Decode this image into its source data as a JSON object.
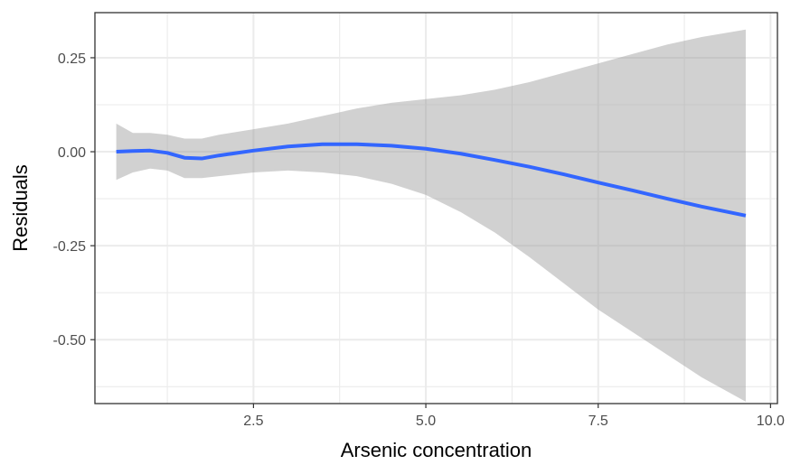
{
  "chart_data": {
    "type": "line",
    "title": "",
    "xlabel": "Arsenic concentration",
    "ylabel": "Residuals",
    "xlim": [
      0.2,
      10.1
    ],
    "ylim": [
      -0.67,
      0.37
    ],
    "grid": true,
    "legend": "none",
    "x_ticks": [
      2.5,
      5.0,
      7.5,
      10.0
    ],
    "x_tick_labels": [
      "2.5",
      "5.0",
      "7.5",
      "10.0"
    ],
    "y_ticks": [
      0.25,
      0.0,
      -0.25,
      -0.5
    ],
    "y_tick_labels": [
      "0.25",
      "0.00",
      "-0.25",
      "-0.50"
    ],
    "colors": {
      "line": "#3366FF",
      "band": "#999999",
      "grid": "#ebebeb",
      "panel_border": "#333333"
    },
    "series": [
      {
        "kind": "smooth-fit",
        "x": [
          0.51,
          0.75,
          1.0,
          1.25,
          1.5,
          1.75,
          2.0,
          2.5,
          3.0,
          3.5,
          4.0,
          4.5,
          5.0,
          5.5,
          6.0,
          6.5,
          7.0,
          7.5,
          8.0,
          8.5,
          9.0,
          9.64
        ],
        "y": [
          0.0,
          0.002,
          0.003,
          -0.003,
          -0.016,
          -0.018,
          -0.01,
          0.003,
          0.014,
          0.02,
          0.02,
          0.016,
          0.008,
          -0.005,
          -0.022,
          -0.04,
          -0.06,
          -0.082,
          -0.103,
          -0.125,
          -0.146,
          -0.17
        ],
        "lower": [
          -0.075,
          -0.055,
          -0.045,
          -0.05,
          -0.07,
          -0.07,
          -0.065,
          -0.055,
          -0.05,
          -0.055,
          -0.065,
          -0.085,
          -0.115,
          -0.16,
          -0.215,
          -0.28,
          -0.35,
          -0.42,
          -0.48,
          -0.54,
          -0.6,
          -0.665
        ],
        "upper": [
          0.075,
          0.05,
          0.05,
          0.045,
          0.035,
          0.035,
          0.045,
          0.06,
          0.075,
          0.095,
          0.115,
          0.13,
          0.14,
          0.15,
          0.165,
          0.185,
          0.21,
          0.235,
          0.26,
          0.285,
          0.305,
          0.325
        ]
      }
    ]
  }
}
